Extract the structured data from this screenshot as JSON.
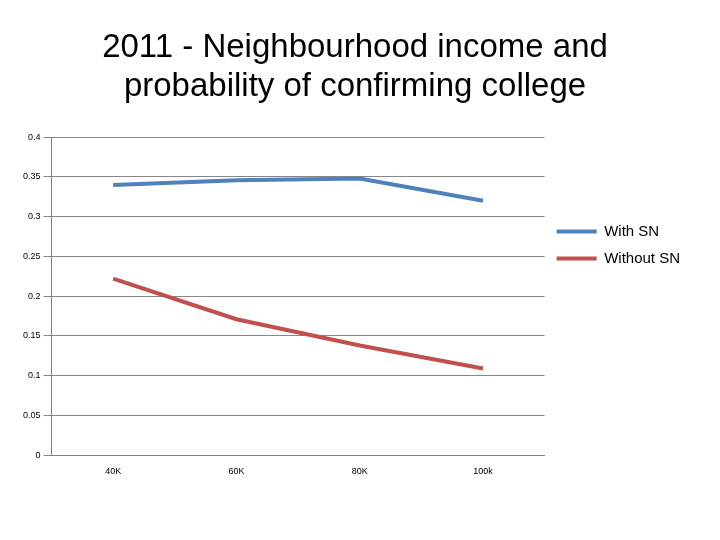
{
  "chart_data": {
    "type": "line",
    "title": [
      "2011 - Neighbourhood income and",
      "probability of confirming college"
    ],
    "categories": [
      "40K",
      "60K",
      "80K",
      "100k"
    ],
    "series": [
      {
        "name": "With SN",
        "color": "#4f81bd",
        "values": [
          0.34,
          0.346,
          0.348,
          0.32
        ]
      },
      {
        "name": "Without SN",
        "color": "#c0504d",
        "values": [
          0.222,
          0.171,
          0.138,
          0.109
        ]
      }
    ],
    "ylim": [
      0,
      0.4
    ],
    "yticks": [
      0,
      0.05,
      0.1,
      0.15,
      0.2,
      0.25,
      0.3,
      0.35,
      0.4
    ],
    "grid": true,
    "legend": "right"
  }
}
